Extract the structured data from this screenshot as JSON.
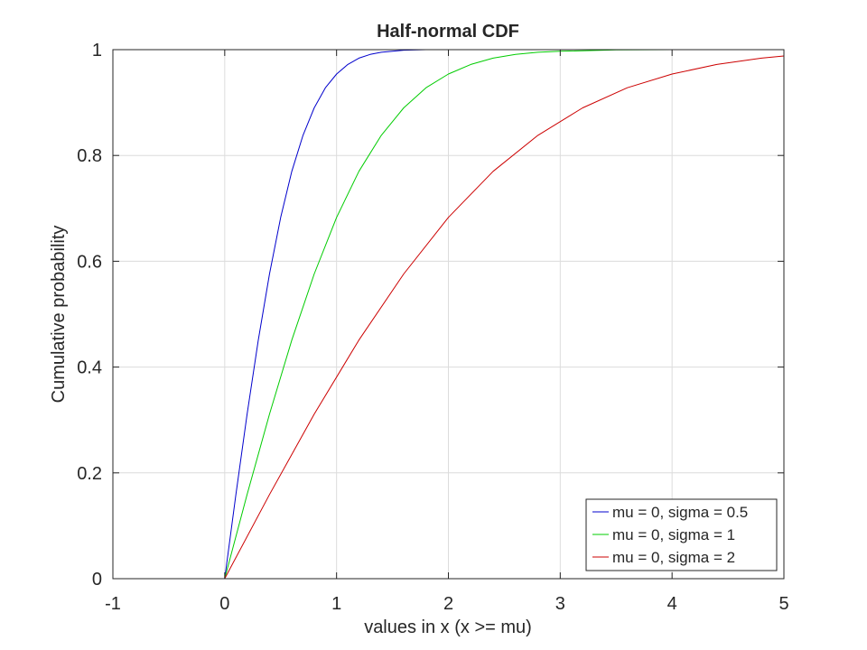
{
  "chart_data": {
    "type": "line",
    "title": "Half-normal CDF",
    "xlabel": "values in x (x >= mu)",
    "ylabel": "Cumulative probability",
    "xlim": [
      -1,
      5
    ],
    "ylim": [
      0,
      1
    ],
    "xticks": [
      -1,
      0,
      1,
      2,
      3,
      4,
      5
    ],
    "yticks": [
      0,
      0.2,
      0.4,
      0.6,
      0.8,
      1
    ],
    "xtick_labels": [
      "-1",
      "0",
      "1",
      "2",
      "3",
      "4",
      "5"
    ],
    "ytick_labels": [
      "0",
      "0.2",
      "0.4",
      "0.6",
      "0.8",
      "1"
    ],
    "grid": true,
    "legend_position": "bottom-right",
    "series": [
      {
        "name": "mu = 0, sigma = 0.5",
        "color": "#0000cc",
        "x": [
          -1,
          0,
          0,
          0.1,
          0.2,
          0.3,
          0.4,
          0.5,
          0.6,
          0.7,
          0.8,
          0.9,
          1.0,
          1.1,
          1.2,
          1.3,
          1.4,
          1.5,
          1.6,
          1.8,
          2.0,
          2.5,
          3.2
        ],
        "y": [
          0,
          0,
          0,
          0.159,
          0.311,
          0.451,
          0.576,
          0.683,
          0.77,
          0.838,
          0.89,
          0.928,
          0.954,
          0.972,
          0.984,
          0.991,
          0.995,
          0.997,
          0.999,
          1.0,
          1.0,
          1.0,
          1.0
        ]
      },
      {
        "name": "mu = 0, sigma = 1",
        "color": "#00cc00",
        "x": [
          0,
          0.2,
          0.4,
          0.6,
          0.8,
          1.0,
          1.2,
          1.4,
          1.6,
          1.8,
          2.0,
          2.2,
          2.4,
          2.6,
          2.8,
          3.0,
          3.5,
          4.0,
          4.5,
          5.0
        ],
        "y": [
          0,
          0.159,
          0.311,
          0.451,
          0.576,
          0.683,
          0.77,
          0.838,
          0.89,
          0.928,
          0.954,
          0.972,
          0.984,
          0.991,
          0.995,
          0.997,
          0.9995,
          1.0,
          1.0,
          1.0
        ]
      },
      {
        "name": "mu = 0, sigma = 2",
        "color": "#cc0000",
        "x": [
          0,
          0.4,
          0.8,
          1.2,
          1.6,
          2.0,
          2.4,
          2.8,
          3.2,
          3.6,
          4.0,
          4.4,
          4.8,
          5.0
        ],
        "y": [
          0,
          0.159,
          0.311,
          0.451,
          0.576,
          0.683,
          0.77,
          0.838,
          0.89,
          0.928,
          0.954,
          0.972,
          0.984,
          0.988
        ]
      }
    ]
  }
}
